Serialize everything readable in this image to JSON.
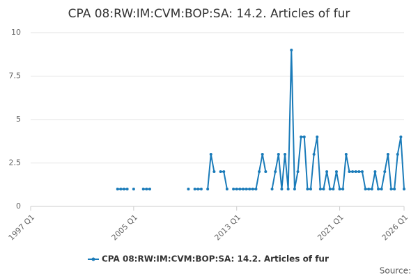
{
  "chart_data": {
    "type": "line",
    "title": "CPA 08:RW:IM:CVM:BOP:SA: 14.2. Articles of fur",
    "source": "Source:",
    "xlim": [
      1997,
      2026
    ],
    "xticks": [
      {
        "value": 1997,
        "label": "1997 Q1"
      },
      {
        "value": 2005,
        "label": "2005 Q1"
      },
      {
        "value": 2013,
        "label": "2013 Q1"
      },
      {
        "value": 2021,
        "label": "2021 Q1"
      },
      {
        "value": 2026,
        "label": "2026 Q1"
      }
    ],
    "ylim": [
      0,
      10
    ],
    "yticks": [
      0,
      2.5,
      5,
      7.5,
      10
    ],
    "grid": true,
    "x": [
      2003.75,
      2004,
      2004.25,
      2004.5,
      2004.75,
      2005,
      2005.25,
      2005.5,
      2005.75,
      2006,
      2006.25,
      2006.5,
      2006.75,
      2007,
      2007.25,
      2007.5,
      2007.75,
      2008,
      2008.25,
      2008.5,
      2008.75,
      2009,
      2009.25,
      2009.5,
      2009.75,
      2010,
      2010.25,
      2010.5,
      2010.75,
      2011,
      2011.25,
      2011.5,
      2011.75,
      2012,
      2012.25,
      2012.5,
      2012.75,
      2013,
      2013.25,
      2013.5,
      2013.75,
      2014,
      2014.25,
      2014.5,
      2014.75,
      2015,
      2015.25,
      2015.5,
      2015.75,
      2016,
      2016.25,
      2016.5,
      2016.75,
      2017,
      2017.25,
      2017.5,
      2017.75,
      2018,
      2018.25,
      2018.5,
      2018.75,
      2019,
      2019.25,
      2019.5,
      2019.75,
      2020,
      2020.25,
      2020.5,
      2020.75,
      2021,
      2021.25,
      2021.5,
      2021.75,
      2022,
      2022.25,
      2022.5,
      2022.75,
      2023,
      2023.25,
      2023.5,
      2023.75,
      2024,
      2024.25,
      2024.5,
      2024.75,
      2025,
      2025.25,
      2025.5,
      2025.75,
      2026
    ],
    "series": [
      {
        "name": "CPA 08:RW:IM:CVM:BOP:SA: 14.2. Articles of fur",
        "color": "#1a7bb9",
        "values": [
          1,
          1,
          1,
          1,
          null,
          1,
          null,
          null,
          1,
          1,
          1,
          null,
          null,
          null,
          null,
          null,
          null,
          null,
          null,
          null,
          null,
          null,
          1,
          null,
          1,
          1,
          1,
          null,
          1,
          3,
          2,
          null,
          2,
          2,
          1,
          null,
          1,
          1,
          1,
          1,
          1,
          1,
          1,
          1,
          2,
          3,
          2,
          null,
          1,
          2,
          3,
          1,
          3,
          1,
          9,
          1,
          2,
          4,
          4,
          1,
          1,
          3,
          4,
          1,
          1,
          2,
          1,
          1,
          2,
          1,
          1,
          3,
          2,
          2,
          2,
          2,
          2,
          1,
          1,
          1,
          2,
          1,
          1,
          2,
          3,
          1,
          1,
          3,
          4,
          1
        ]
      }
    ]
  }
}
